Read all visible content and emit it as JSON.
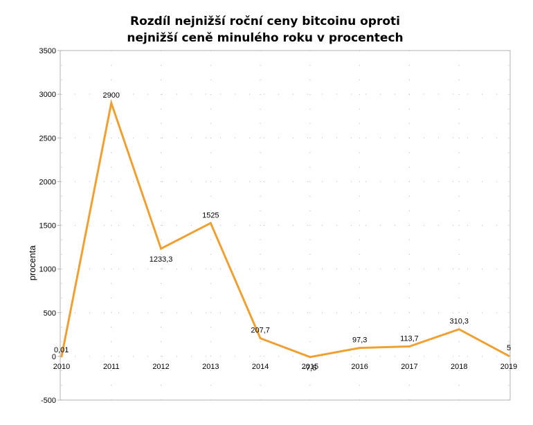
{
  "chart_data": {
    "type": "line",
    "title": "Rozdíl nejnižší roční ceny bitcoinu oproti nejnižší ceně minulého roku v procentech",
    "title_lines": [
      "Rozdíl nejnižší roční ceny bitcoinu oproti",
      "nejnižší ceně minulého roku v procentech"
    ],
    "xlabel": "",
    "ylabel": "procenta",
    "x": [
      "2010",
      "2011",
      "2012",
      "2013",
      "2014",
      "2015",
      "2016",
      "2017",
      "2018",
      "2019"
    ],
    "series": [
      {
        "values": [
          0.01,
          2900,
          1233.3,
          1525,
          207.7,
          -7.5,
          97.3,
          113.7,
          310.3,
          5
        ],
        "labels": [
          "0,01",
          "2900",
          "1233,3",
          "1525",
          "207,7",
          "-7,5",
          "97,3",
          "113,7",
          "310,3",
          "5"
        ],
        "color": "#f0a030"
      }
    ],
    "y_ticks": [
      3500,
      3000,
      2500,
      2000,
      1500,
      1000,
      500,
      0,
      -500
    ],
    "ylim": [
      -500,
      3500
    ],
    "grid": "dotted",
    "legend": "none"
  }
}
